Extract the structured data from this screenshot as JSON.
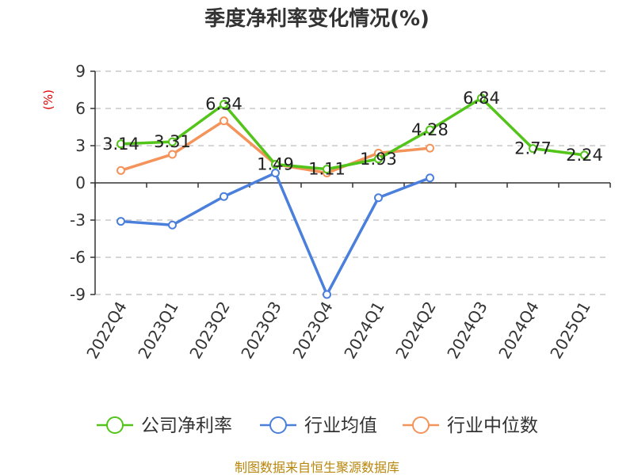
{
  "chart_data": {
    "type": "line",
    "title": "季度净利率变化情况(%)",
    "ylabel": "(%)",
    "ylim": [
      -9,
      9
    ],
    "yticks": [
      9,
      6,
      3,
      0,
      -3,
      -6,
      -9
    ],
    "categories": [
      "2022Q4",
      "2023Q1",
      "2023Q2",
      "2023Q3",
      "2023Q4",
      "2024Q1",
      "2024Q2",
      "2024Q3",
      "2024Q4",
      "2025Q1"
    ],
    "series": [
      {
        "name": "公司净利率",
        "color": "#52c41a",
        "values": [
          3.14,
          3.31,
          6.34,
          1.49,
          1.11,
          1.93,
          4.28,
          6.84,
          2.77,
          2.24
        ],
        "labels": [
          "3.14",
          "3.31",
          "6.34",
          "1.49",
          "1.11",
          "1.93",
          "4.28",
          "6.84",
          "2.77",
          "2.24"
        ]
      },
      {
        "name": "行业均值",
        "color": "#4a7fdc",
        "values": [
          -3.1,
          -3.4,
          -1.1,
          0.8,
          -9.0,
          -1.2,
          0.4,
          null,
          null,
          null
        ]
      },
      {
        "name": "行业中位数",
        "color": "#f4935a",
        "values": [
          1.0,
          2.3,
          5.0,
          1.5,
          0.8,
          2.4,
          2.8,
          null,
          null,
          null
        ]
      }
    ],
    "grid": true,
    "legend_position": "bottom"
  },
  "source": "制图数据来自恒生聚源数据库"
}
